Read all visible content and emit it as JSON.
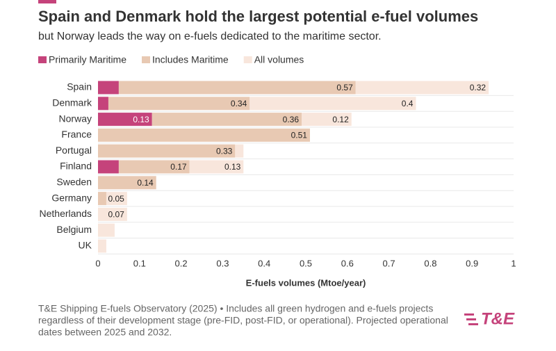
{
  "chart_data": {
    "type": "stacked-barh",
    "title": "Spain and Denmark hold the largest potential e-fuel volumes",
    "subtitle": "but Norway leads the way on e-fuels dedicated to the maritime sector.",
    "categories": [
      "Spain",
      "Denmark",
      "Norway",
      "France",
      "Portugal",
      "Finland",
      "Sweden",
      "Germany",
      "Netherlands",
      "Belgium",
      "UK"
    ],
    "series": [
      {
        "name": "Primarily Maritime",
        "color": "#c5437b",
        "values": [
          0.05,
          0.025,
          0.13,
          null,
          null,
          0.05,
          null,
          null,
          null,
          null,
          null
        ],
        "value_labels": [
          null,
          null,
          "0.13",
          null,
          null,
          null,
          null,
          null,
          null,
          null,
          null
        ]
      },
      {
        "name": "Includes Maritime",
        "color": "#e8c9b3",
        "values": [
          0.57,
          0.34,
          0.36,
          0.51,
          0.33,
          0.17,
          0.14,
          0.02,
          null,
          null,
          null
        ],
        "value_labels": [
          "0.57",
          "0.34",
          "0.36",
          "0.51",
          "0.33",
          "0.17",
          "0.14",
          null,
          null,
          null,
          null
        ]
      },
      {
        "name": "All volumes",
        "color": "#f8e6dc",
        "values": [
          0.32,
          0.4,
          0.12,
          null,
          0.02,
          0.13,
          null,
          0.05,
          0.07,
          0.04,
          0.02
        ],
        "value_labels": [
          "0.32",
          "0.4",
          "0.12",
          null,
          null,
          "0.13",
          null,
          "0.05",
          "0.07",
          null,
          null
        ]
      }
    ],
    "xlim": [
      0,
      1
    ],
    "xticks": [
      0,
      0.1,
      0.2,
      0.3,
      0.4,
      0.5,
      0.6,
      0.7,
      0.8,
      0.9,
      1
    ],
    "xlabel": "E-fuels volumes (Mtoe/year)",
    "source": [
      "T&E Shipping E-fuels Observatory (2025) • Includes all green hydrogen and e-fuels projects",
      "regardless of their development stage (pre-FID, post-FID, or operational). Projected operational",
      "dates between 2025 and 2032."
    ],
    "logo": "T&E"
  }
}
